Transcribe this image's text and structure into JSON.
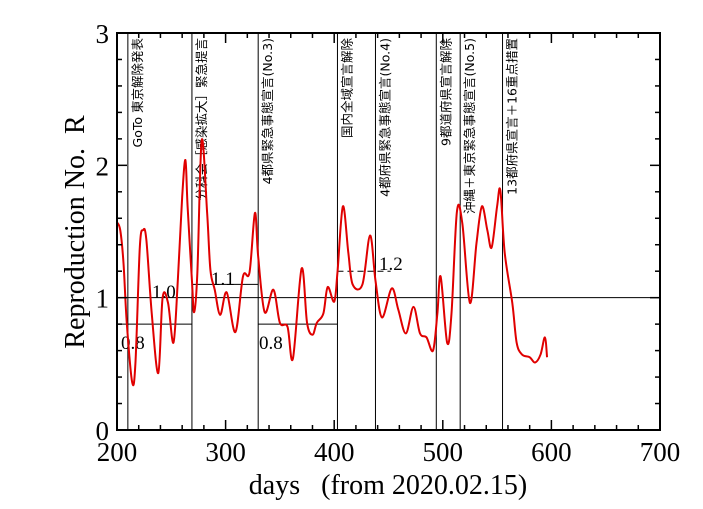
{
  "chart_data": {
    "type": "line",
    "title": "",
    "xlabel": "days   (from 2020.02.15)",
    "ylabel": "Reproduction No.  R",
    "xlim": [
      200,
      700
    ],
    "ylim": [
      0,
      3
    ],
    "xticks": [
      200,
      300,
      400,
      500,
      600,
      700
    ],
    "yticks": [
      0,
      1,
      2,
      3
    ],
    "grid": false,
    "series": [
      {
        "name": "R",
        "color": "#e00000",
        "x": [
          200,
          203,
          206,
          209,
          214,
          217,
          221,
          224,
          227,
          232,
          238,
          242,
          247,
          252,
          256,
          260,
          263,
          265,
          269,
          271,
          274,
          278,
          283,
          286,
          290,
          295,
          301,
          309,
          316,
          322,
          327,
          330,
          336,
          344,
          350,
          357,
          362,
          370,
          375,
          380,
          384,
          390,
          394,
          400,
          403,
          408,
          413,
          417,
          426,
          433,
          438,
          444,
          453,
          459,
          466,
          473,
          479,
          485,
          491,
          495,
          498,
          504,
          508,
          513,
          518,
          525,
          531,
          536,
          541,
          545,
          550,
          553,
          557,
          564,
          568,
          573,
          580,
          585,
          590,
          594,
          596
        ],
        "y": [
          1.57,
          1.51,
          1.26,
          0.81,
          0.36,
          0.51,
          1.38,
          1.51,
          1.44,
          0.88,
          0.43,
          1.0,
          0.96,
          0.66,
          1.13,
          1.76,
          2.04,
          1.69,
          1.13,
          0.89,
          1.19,
          2.19,
          1.64,
          1.21,
          1.06,
          0.87,
          1.04,
          0.74,
          1.16,
          1.19,
          1.64,
          1.31,
          0.89,
          1.06,
          0.81,
          0.78,
          0.54,
          1.22,
          0.81,
          0.72,
          0.81,
          0.88,
          1.08,
          0.97,
          1.19,
          1.69,
          1.34,
          1.1,
          1.1,
          1.47,
          1.13,
          0.85,
          1.07,
          0.91,
          0.73,
          0.93,
          0.73,
          0.7,
          0.6,
          0.88,
          1.16,
          0.66,
          0.88,
          1.65,
          1.56,
          0.96,
          1.41,
          1.69,
          1.51,
          1.38,
          1.69,
          1.81,
          1.34,
          0.96,
          0.66,
          0.57,
          0.55,
          0.51,
          0.57,
          0.7,
          0.55
        ]
      }
    ],
    "reference_levels": [
      {
        "label": "0.8",
        "value": 0.8,
        "from": 200,
        "to": 269,
        "style": "solid"
      },
      {
        "label": "1.0",
        "value": 1.0,
        "from": 200,
        "to": 700,
        "style": "solid"
      },
      {
        "label": "1.1",
        "value": 1.1,
        "from": 269,
        "to": 330,
        "style": "solid"
      },
      {
        "label": "0.8",
        "value": 0.8,
        "from": 330,
        "to": 403,
        "style": "solid"
      },
      {
        "label": "1.2",
        "value": 1.2,
        "from": 403,
        "to": 452,
        "style": "dashed"
      }
    ],
    "events": [
      {
        "day": 210,
        "label": "GoTo 東京解除発表"
      },
      {
        "day": 269,
        "label": "分科会［感染拡大］緊急提言"
      },
      {
        "day": 330,
        "label": "4都県緊急事態宣言(No.3)"
      },
      {
        "day": 403,
        "label": "国内全域宣言解除"
      },
      {
        "day": 438,
        "label": "4都府県緊急事態宣言(No.4)"
      },
      {
        "day": 494,
        "label": "9都道府県宣言解除"
      },
      {
        "day": 516,
        "label": "沖縄＋東京緊急事態宣言(No.5)"
      },
      {
        "day": 555,
        "label": "13都府県宣言＋16重点措置"
      }
    ]
  }
}
